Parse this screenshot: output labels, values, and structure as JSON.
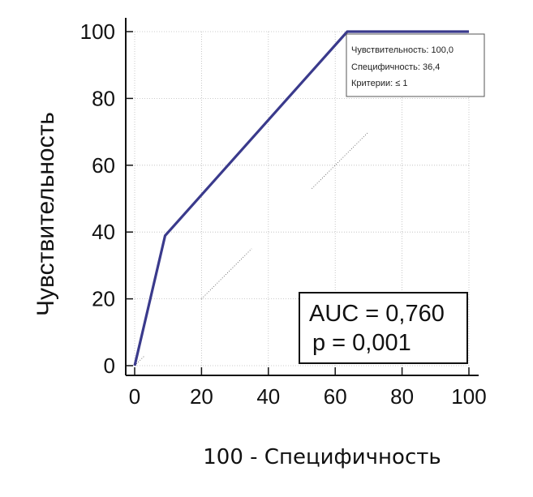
{
  "chart_data": {
    "type": "line",
    "title": "",
    "xlabel": "100 - Специфичность",
    "ylabel": "Чувствительность",
    "xlim": [
      0,
      100
    ],
    "ylim": [
      0,
      100
    ],
    "x_ticks": [
      "0",
      "20",
      "40",
      "60",
      "80",
      "100"
    ],
    "y_ticks": [
      "0",
      "20",
      "40",
      "60",
      "80",
      "100"
    ],
    "grid": true,
    "colors": {
      "roc": "#3a3a8c",
      "axis": "#111111",
      "grid": "#bbbbbb"
    },
    "series": [
      {
        "x": [
          0,
          9.1,
          63.6,
          100
        ],
        "y": [
          0,
          38.9,
          100,
          100
        ]
      }
    ],
    "tooltip": {
      "lines": [
        "Чувствительность: 100,0",
        "Специфичность: 36,4",
        "Критерии: ≤ 1"
      ]
    },
    "stats": {
      "lines": [
        "AUC = 0,760",
        "p = 0,001"
      ]
    }
  }
}
